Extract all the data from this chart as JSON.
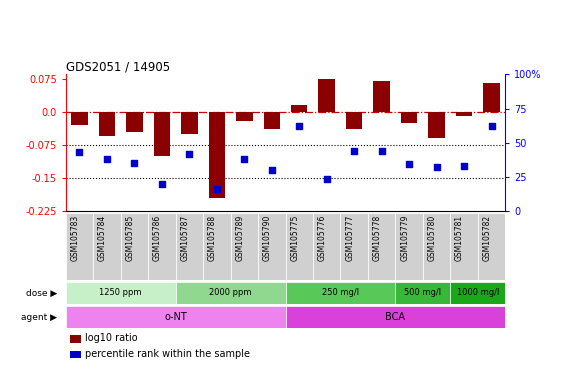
{
  "title": "GDS2051 / 14905",
  "samples": [
    "GSM105783",
    "GSM105784",
    "GSM105785",
    "GSM105786",
    "GSM105787",
    "GSM105788",
    "GSM105789",
    "GSM105790",
    "GSM105775",
    "GSM105776",
    "GSM105777",
    "GSM105778",
    "GSM105779",
    "GSM105780",
    "GSM105781",
    "GSM105782"
  ],
  "log10_ratio": [
    -0.03,
    -0.055,
    -0.045,
    -0.1,
    -0.05,
    -0.195,
    -0.02,
    -0.04,
    0.015,
    0.075,
    -0.04,
    0.07,
    -0.025,
    -0.06,
    -0.01,
    0.065
  ],
  "percentile_rank": [
    43,
    38,
    35,
    20,
    42,
    16,
    38,
    30,
    62,
    23,
    44,
    44,
    34,
    32,
    33,
    62
  ],
  "ylim_left": [
    -0.225,
    0.085
  ],
  "ylim_right": [
    0,
    100
  ],
  "left_ticks": [
    0.075,
    0.0,
    -0.075,
    -0.15,
    -0.225
  ],
  "right_ticks": [
    100,
    75,
    50,
    25,
    0
  ],
  "hlines": [
    -0.075,
    -0.15
  ],
  "zero_line": 0.0,
  "bar_color": "#8B0000",
  "dot_color": "#0000CD",
  "sample_bg": "#d0d0d0",
  "dose_groups": [
    {
      "label": "1250 ppm",
      "start": 0,
      "end": 4,
      "color": "#c8f0c8"
    },
    {
      "label": "2000 ppm",
      "start": 4,
      "end": 8,
      "color": "#90d890"
    },
    {
      "label": "250 mg/l",
      "start": 8,
      "end": 12,
      "color": "#58c858"
    },
    {
      "label": "500 mg/l",
      "start": 12,
      "end": 14,
      "color": "#38b838"
    },
    {
      "label": "1000 mg/l",
      "start": 14,
      "end": 16,
      "color": "#18a818"
    }
  ],
  "agent_groups": [
    {
      "label": "o-NT",
      "start": 0,
      "end": 8,
      "color": "#ee82ee"
    },
    {
      "label": "BCA",
      "start": 8,
      "end": 16,
      "color": "#da40da"
    }
  ],
  "legend_items": [
    {
      "label": "log10 ratio",
      "color": "#8B0000"
    },
    {
      "label": "percentile rank within the sample",
      "color": "#0000CD"
    }
  ]
}
